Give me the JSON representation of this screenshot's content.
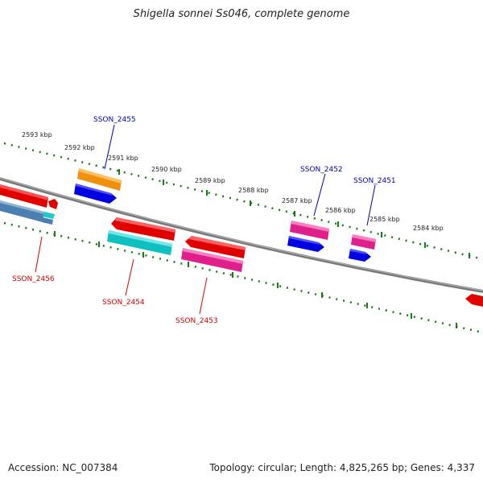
{
  "title": "Shigella sonnei Ss046, complete genome",
  "footer": {
    "accession": "Accession: NC_007384",
    "summary": "Topology: circular; Length: 4,825,265 bp; Genes: 4,337"
  },
  "scale_labels": [
    "2593 kbp",
    "2592 kbp",
    "2591 kbp",
    "2590 kbp",
    "2589 kbp",
    "2588 kbp",
    "2587 kbp",
    "2586 kbp",
    "2585 kbp",
    "2584 kbp"
  ],
  "gene_labels": {
    "ssn2455": "SSON_2455",
    "ssn2452": "SSON_2452",
    "ssn2451": "SSON_2451",
    "ssn2456": "SSON_2456",
    "ssn2454": "SSON_2454",
    "ssn2453": "SSON_2453"
  },
  "colors": {
    "forward_label": "#0000aa",
    "reverse_label": "#cc0000",
    "tick": "#1a7a1a",
    "backbone": "#7a7a7a"
  }
}
